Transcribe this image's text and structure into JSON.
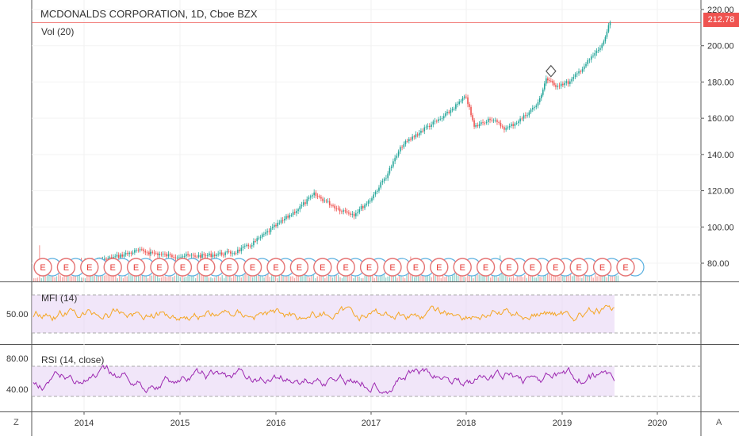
{
  "header": {
    "title": "MCDONALDS CORPORATION, 1D, Cboe BZX",
    "volume_label": "Vol (20)"
  },
  "price_axis": {
    "ticks": [
      "220.00",
      "200.00",
      "180.00",
      "160.00",
      "140.00",
      "120.00",
      "100.00",
      "80.00"
    ],
    "last_price": "212.78"
  },
  "mfi_pane": {
    "label": "MFI (14)",
    "ticks": [
      "50.00"
    ]
  },
  "rsi_pane": {
    "label": "RSI (14, close)",
    "ticks": [
      "80.00",
      "40.00"
    ]
  },
  "time_axis": {
    "labels": [
      "2014",
      "2015",
      "2016",
      "2017",
      "2018",
      "2019",
      "2020"
    ]
  },
  "earnings_marker": "E",
  "buttons": {
    "left_corner": "Z",
    "right_corner": "A"
  },
  "colors": {
    "up_candle": "#26a69a",
    "down_candle": "#ef5350",
    "mfi_line": "#f5a623",
    "rsi_line": "#9c27b0",
    "band_fill": "#e8d5f5",
    "price_line": "#ef5350"
  },
  "chart_data": {
    "type": "line",
    "series": [
      {
        "name": "MCDONALDS CORPORATION",
        "x": [
          "2013-08",
          "2013-12",
          "2014-04",
          "2014-08",
          "2014-12",
          "2015-04",
          "2015-08",
          "2015-10",
          "2016-01",
          "2016-04",
          "2016-06",
          "2016-09",
          "2016-11",
          "2017-01",
          "2017-03",
          "2017-05",
          "2017-08",
          "2017-10",
          "2018-01",
          "2018-02",
          "2018-04",
          "2018-06",
          "2018-08",
          "2018-10",
          "2018-11",
          "2018-12",
          "2019-02",
          "2019-04",
          "2019-06",
          "2019-07"
        ],
        "values": [
          78,
          80,
          82,
          87,
          84,
          84,
          86,
          90,
          100,
          110,
          118,
          110,
          107,
          115,
          128,
          145,
          155,
          160,
          172,
          155,
          160,
          154,
          160,
          168,
          182,
          178,
          180,
          190,
          200,
          213
        ]
      }
    ],
    "ylim": [
      72,
      224
    ]
  }
}
